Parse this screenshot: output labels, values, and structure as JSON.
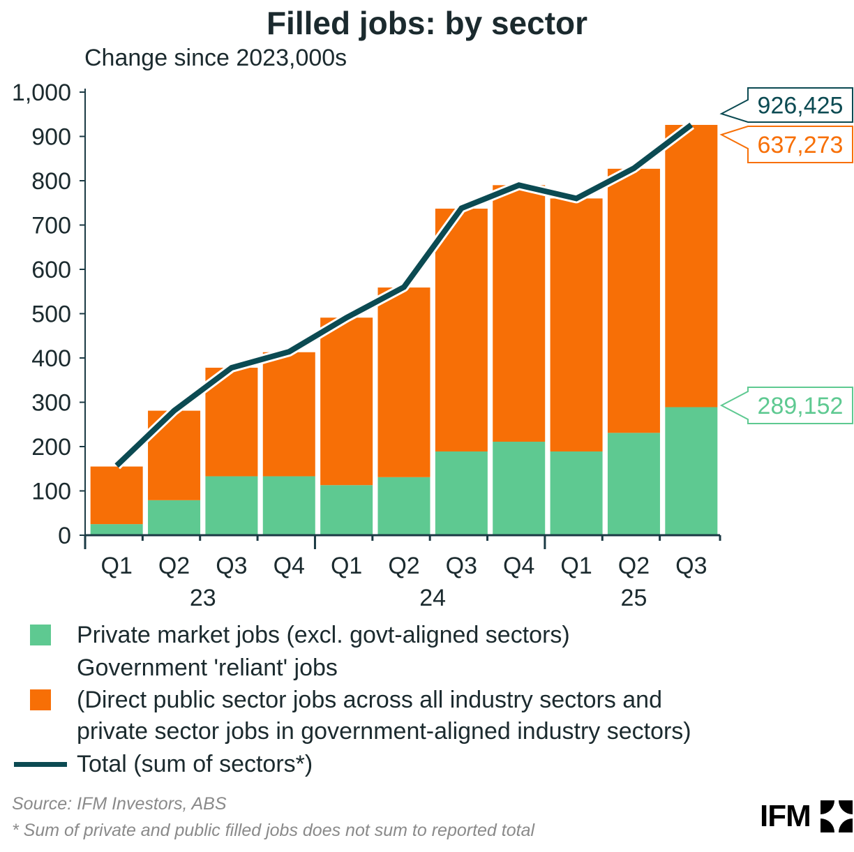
{
  "chart_data": {
    "type": "bar+line",
    "stacked": true,
    "title": "Filled jobs: by sector",
    "subtitle": "Change since 2023,000s",
    "categories": [
      "Q1",
      "Q2",
      "Q3",
      "Q4",
      "Q1",
      "Q2",
      "Q3",
      "Q4",
      "Q1",
      "Q2",
      "Q3"
    ],
    "year_groups": [
      {
        "label": "23",
        "count": 4
      },
      {
        "label": "24",
        "count": 4
      },
      {
        "label": "25",
        "count": 3
      }
    ],
    "ylim": [
      0,
      1000
    ],
    "yticks": [
      0,
      100,
      200,
      300,
      400,
      500,
      600,
      700,
      800,
      900,
      1000
    ],
    "ytick_labels": [
      "0",
      "100",
      "200",
      "300",
      "400",
      "500",
      "600",
      "700",
      "800",
      "900",
      "1,000"
    ],
    "grid": false,
    "series": [
      {
        "name": "Private market jobs (excl. govt-aligned sectors)",
        "type": "bar",
        "color": "#5ec991",
        "values": [
          25,
          79,
          133,
          133,
          113,
          131,
          189,
          211,
          189,
          231,
          289
        ]
      },
      {
        "name": "Government 'reliant' jobs",
        "type": "bar",
        "color": "#f76f06",
        "values": [
          130,
          202,
          245,
          280,
          378,
          428,
          548,
          579,
          571,
          596,
          637
        ]
      },
      {
        "name": "Total (sum of sectors*)",
        "type": "line",
        "color": "#0b4a52",
        "values": [
          157,
          281,
          378,
          414,
          491,
          560,
          738,
          790,
          760,
          828,
          926
        ]
      }
    ],
    "callouts": [
      {
        "text": "926,425",
        "series": 2,
        "color": "#0b4a52"
      },
      {
        "text": "637,273",
        "series": 1,
        "color": "#f76f06"
      },
      {
        "text": "289,152",
        "series": 0,
        "color": "#5ec991"
      }
    ],
    "legend": {
      "placement": "bottom",
      "private": "Private market jobs (excl. govt-aligned sectors)",
      "gov_line1": "Government 'reliant' jobs",
      "gov_line2": "(Direct public sector jobs across all industry sectors and",
      "gov_line3": "private sector jobs in government-aligned industry sectors)",
      "total": "Total (sum of sectors*)"
    }
  },
  "footer": {
    "source": "Source: IFM Investors, ABS",
    "note": "* Sum of private and public filled jobs does not sum to reported total",
    "logo_text": "IFM"
  }
}
